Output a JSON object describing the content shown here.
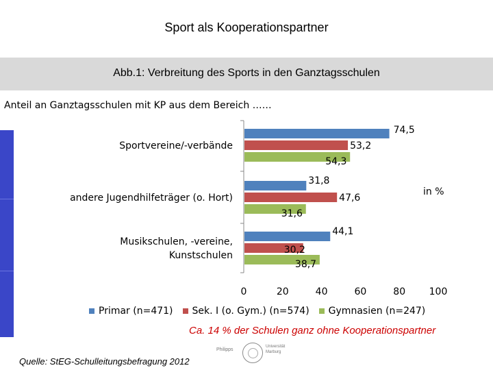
{
  "page": {
    "title": "Sport als Kooperationspartner",
    "caption": "Abb.1: Verbreitung des Sports in den Ganztagsschulen",
    "note": "Ca. 14 % der Schulen ganz ohne Kooperationspartner",
    "source": "Quelle: StEG-Schulleitungsbefragung 2012",
    "logo": {
      "left_text": "Philipps",
      "right_text_1": "Universität",
      "right_text_2": "Marburg"
    }
  },
  "chart_data": {
    "type": "bar",
    "orientation": "horizontal",
    "subtitle": "Anteil an Ganztagsschulen mit KP aus dem Bereich ……",
    "unit": "in %",
    "categories": [
      [
        "Sportvereine/-verbände"
      ],
      [
        "andere Jugendhilfeträger (o. Hort)"
      ],
      [
        "Musikschulen, -vereine,",
        "Kunstschulen"
      ]
    ],
    "series": [
      {
        "name": "Primar (n=471)",
        "color": "#4f81bd",
        "values": [
          74.5,
          31.8,
          44.1
        ],
        "labels": [
          "74,5",
          "31,8",
          "44,1"
        ]
      },
      {
        "name": "Sek. I (o. Gym.) (n=574)",
        "color": "#c0504d",
        "values": [
          53.2,
          47.6,
          30.2
        ],
        "labels": [
          "53,2",
          "47,6",
          "30,2"
        ]
      },
      {
        "name": "Gymnasien (n=247)",
        "color": "#9bbb59",
        "values": [
          54.3,
          31.6,
          38.7
        ],
        "labels": [
          "54,3",
          "31,6",
          "38,7"
        ]
      }
    ],
    "xlim": [
      0,
      100
    ],
    "xticks": [
      "0",
      "20",
      "40",
      "60",
      "80",
      "100"
    ],
    "grid": false,
    "legend": "bottom"
  }
}
